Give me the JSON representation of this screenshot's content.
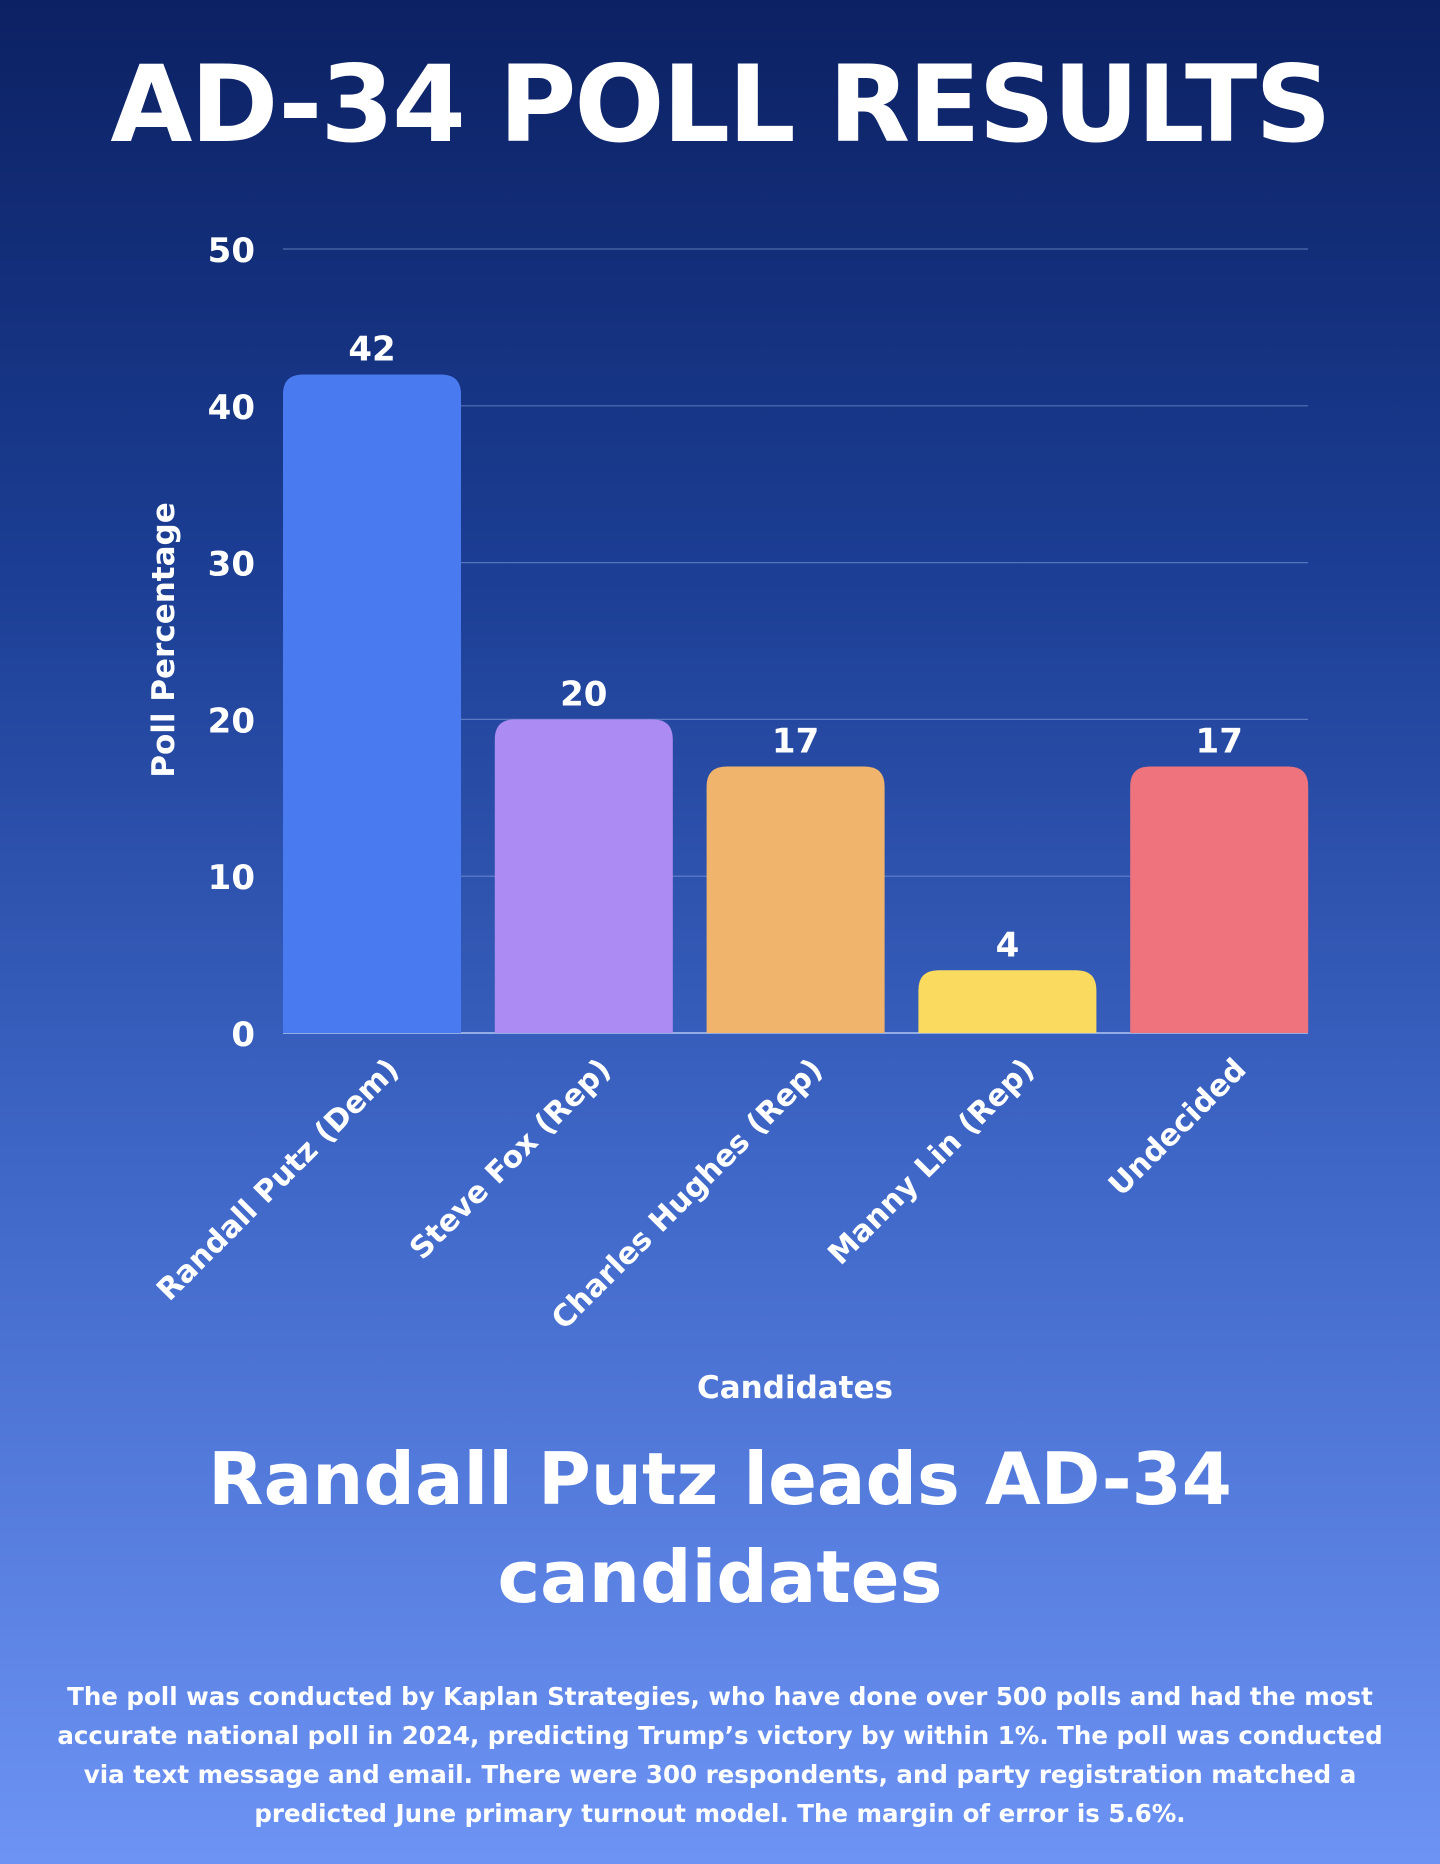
{
  "header": {
    "title": "AD-34 POLL RESULTS"
  },
  "chart_data": {
    "type": "bar",
    "categories": [
      "Randall Putz (Dem)",
      "Steve Fox (Rep)",
      "Charles Hughes (Rep)",
      "Manny Lin (Rep)",
      "Undecided"
    ],
    "values": [
      42,
      20,
      17,
      4,
      17
    ],
    "colors": [
      "#4a7af0",
      "#ac8cf3",
      "#f0b46d",
      "#fadb5f",
      "#ef737d"
    ],
    "title": "AD-34 POLL RESULTS",
    "xlabel": "Candidates",
    "ylabel": "Poll Percentage",
    "ylim": [
      0,
      50
    ],
    "yticks": [
      0,
      10,
      20,
      30,
      40,
      50
    ],
    "grid": true,
    "data_labels": true
  },
  "footer": {
    "headline": "Randall Putz leads AD-34 candidates",
    "note": "The poll was conducted by Kaplan Strategies, who have done over 500 polls and had the most accurate national poll in 2024, predicting Trump’s victory by within 1%. The poll was conducted via text message and email. There were 300 respondents, and party registration matched a predicted June primary turnout model. The margin of error is 5.6%."
  }
}
